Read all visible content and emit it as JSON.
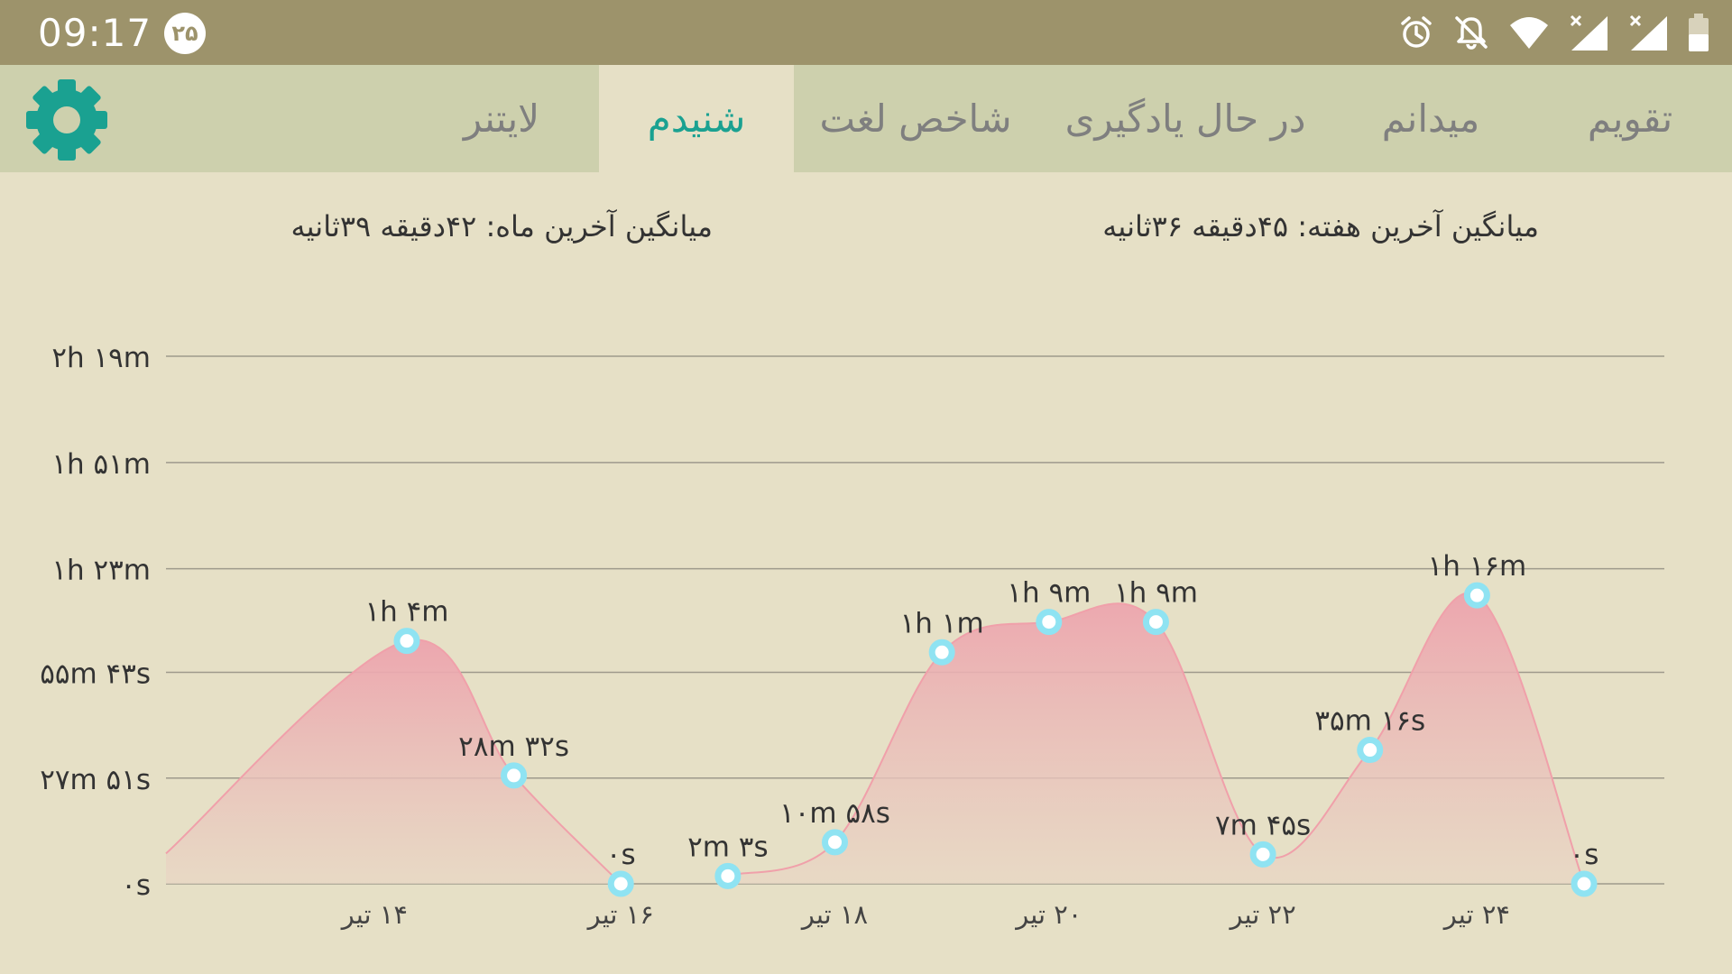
{
  "status_bar": {
    "time": "09:17",
    "badge": "۲۵",
    "icons": [
      "alarm-icon",
      "notifications-off-icon",
      "wifi-icon",
      "signal-icon",
      "signal-icon",
      "battery-icon"
    ]
  },
  "tabs": [
    {
      "label": "تقویم",
      "active": false
    },
    {
      "label": "میدانم",
      "active": false
    },
    {
      "label": "در حال یادگیری",
      "active": false
    },
    {
      "label": "شاخص لغت",
      "active": false
    },
    {
      "label": "شنیدم",
      "active": true
    },
    {
      "label": "لایتنر",
      "active": false
    }
  ],
  "settings_icon": "gear-icon",
  "colors": {
    "accent": "#1aa191",
    "status_bar": "#9d936b",
    "tab_bar": "#cdd0ad",
    "background": "#e6e0c6",
    "series": "#f0a0aa",
    "point": "#8fe3f2"
  },
  "summary": {
    "week": "میانگین آخرین هفته: ۴۵دقیقه ۳۶ثانیه",
    "month": "میانگین آخرین ماه: ۴۲دقیقه ۳۹ثانیه"
  },
  "chart_data": {
    "type": "area",
    "unit": "minutes",
    "y_ticks": [
      {
        "value": 0,
        "label": "۰s"
      },
      {
        "value": 27.85,
        "label": "۲۷m ۵۱s"
      },
      {
        "value": 55.717,
        "label": "۵۵m ۴۳s"
      },
      {
        "value": 83,
        "label": "۱h ۲۳m"
      },
      {
        "value": 111,
        "label": "۱h ۵۱m"
      },
      {
        "value": 139,
        "label": "۲h ۱۹m"
      }
    ],
    "ylim": [
      0,
      139
    ],
    "x_ticks": [
      {
        "x": 13.7,
        "label": "۱۴ تیر"
      },
      {
        "x": 16,
        "label": "۱۶ تیر"
      },
      {
        "x": 18,
        "label": "۱۸ تیر"
      },
      {
        "x": 20,
        "label": "۲۰ تیر"
      },
      {
        "x": 22,
        "label": "۲۲ تیر"
      },
      {
        "x": 24,
        "label": "۲۴ تیر"
      }
    ],
    "xlim": [
      11.75,
      25.75
    ],
    "points": [
      {
        "x": 14,
        "value": 64,
        "label": "۱h ۴m"
      },
      {
        "x": 15,
        "value": 28.53,
        "label": "۲۸m ۳۲s"
      },
      {
        "x": 16,
        "value": 0,
        "label": "۰s"
      },
      {
        "x": 17,
        "value": 2.05,
        "label": "۲m ۳s"
      },
      {
        "x": 18,
        "value": 10.97,
        "label": "۱۰m ۵۸s"
      },
      {
        "x": 19,
        "value": 61,
        "label": "۱h ۱m"
      },
      {
        "x": 20,
        "value": 69,
        "label": "۱h ۹m"
      },
      {
        "x": 21,
        "value": 69,
        "label": "۱h ۹m"
      },
      {
        "x": 22,
        "value": 7.75,
        "label": "۷m ۴۵s"
      },
      {
        "x": 23,
        "value": 35.27,
        "label": "۳۵m ۱۶s"
      },
      {
        "x": 24,
        "value": 76,
        "label": "۱h ۱۶m"
      },
      {
        "x": 25,
        "value": 0,
        "label": "۰s"
      }
    ],
    "grid": true,
    "legend": "none"
  }
}
